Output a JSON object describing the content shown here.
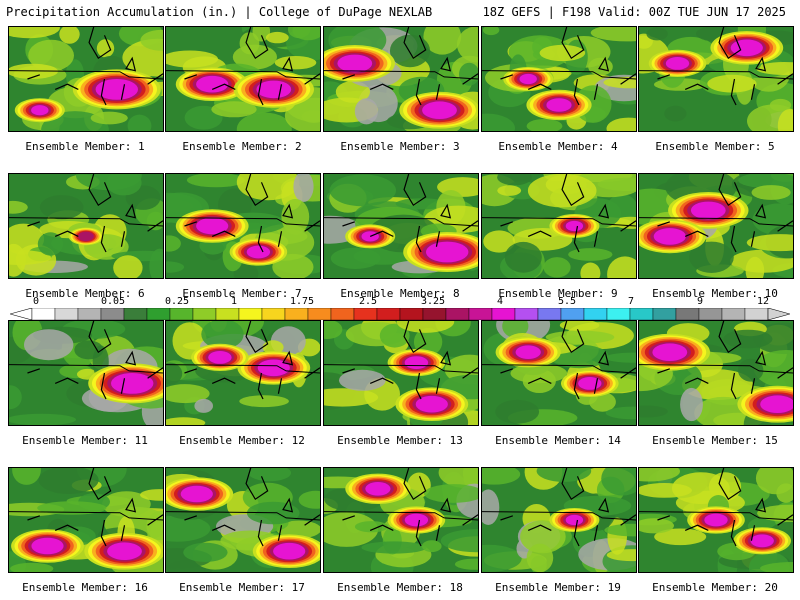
{
  "header": {
    "title": "Precipitation Accumulation (in.) | College of DuPage NEXLAB",
    "run_info": "18Z GEFS | F198 Valid: 00Z TUE JUN 17 2025"
  },
  "member_label_prefix": "Ensemble Member:",
  "members": [
    {
      "label": "Ensemble Member: 1"
    },
    {
      "label": "Ensemble Member: 2"
    },
    {
      "label": "Ensemble Member: 3"
    },
    {
      "label": "Ensemble Member: 4"
    },
    {
      "label": "Ensemble Member: 5"
    },
    {
      "label": "Ensemble Member: 6"
    },
    {
      "label": "Ensemble Member: 7"
    },
    {
      "label": "Ensemble Member: 8"
    },
    {
      "label": "Ensemble Member: 9"
    },
    {
      "label": "Ensemble Member: 10"
    },
    {
      "label": "Ensemble Member: 11"
    },
    {
      "label": "Ensemble Member: 12"
    },
    {
      "label": "Ensemble Member: 13"
    },
    {
      "label": "Ensemble Member: 14"
    },
    {
      "label": "Ensemble Member: 15"
    },
    {
      "label": "Ensemble Member: 16"
    },
    {
      "label": "Ensemble Member: 17"
    },
    {
      "label": "Ensemble Member: 18"
    },
    {
      "label": "Ensemble Member: 19"
    },
    {
      "label": "Ensemble Member: 20"
    }
  ],
  "colorbar": {
    "tick_labels": [
      "0",
      "0.05",
      "0.25",
      "1",
      "1.75",
      "2.5",
      "3.25",
      "4",
      "5.5",
      "7",
      "9",
      "12"
    ],
    "colors": [
      "#ffffff",
      "#d8d8d8",
      "#b4b4b4",
      "#8c8c8c",
      "#3a7e3a",
      "#2f9f2f",
      "#57b52c",
      "#8fcc28",
      "#c8e020",
      "#f5f51e",
      "#f7d51e",
      "#f9b01e",
      "#f78c1e",
      "#f0641e",
      "#e6321e",
      "#d21e1e",
      "#b4141e",
      "#96142e",
      "#aa1464",
      "#c81496",
      "#e614d2",
      "#b450f0",
      "#7878f0",
      "#50a0f0",
      "#32d2f0",
      "#3cf0f0",
      "#28c8c8",
      "#32a0a0",
      "#787878",
      "#969696",
      "#b4b4b4",
      "#d2d2d2"
    ]
  }
}
